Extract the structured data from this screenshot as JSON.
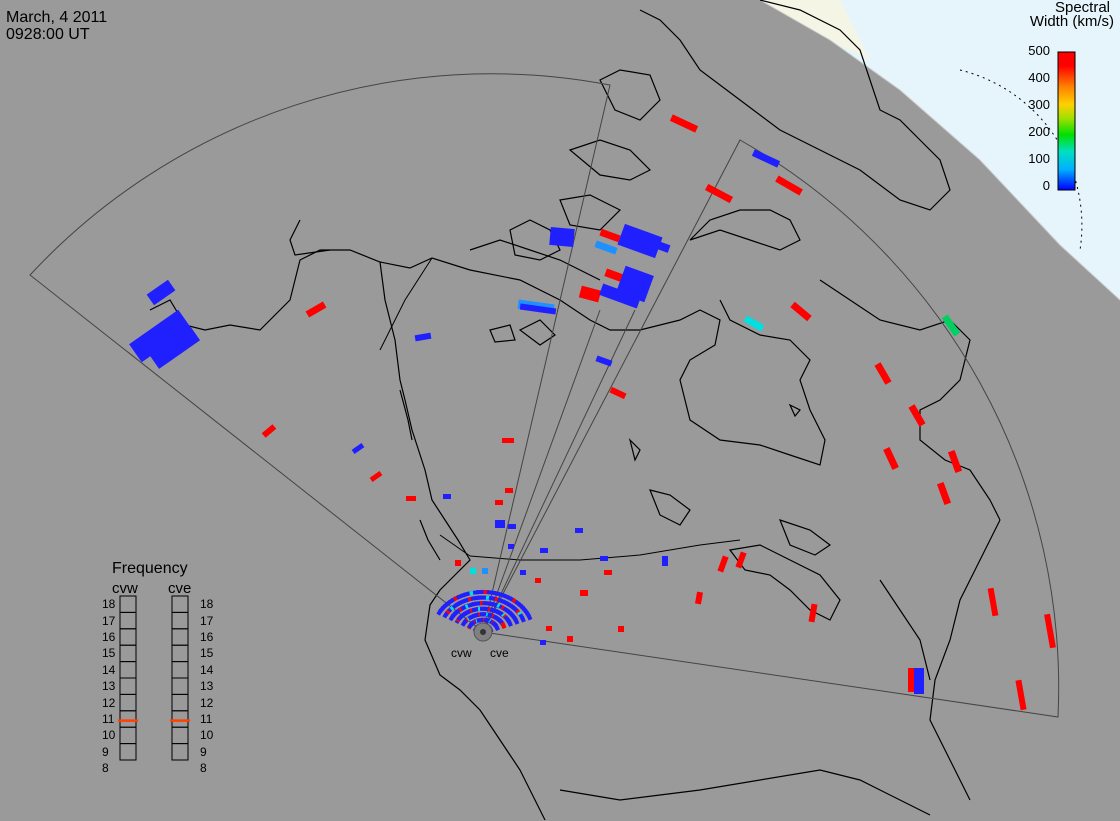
{
  "header": {
    "date": "March, 4 2011",
    "time": "0928:00 UT"
  },
  "colorbar": {
    "title_line1": "Spectral",
    "title_line2": "Width (km/s)",
    "ticks": [
      "500",
      "400",
      "300",
      "200",
      "100",
      "0"
    ],
    "colors": [
      "#0000ff",
      "#00b0ff",
      "#00e0c0",
      "#00e000",
      "#a0e000",
      "#ffd000",
      "#ff8000",
      "#ff0000"
    ]
  },
  "frequency_panel": {
    "title": "Frequency",
    "radars": [
      "cvw",
      "cve"
    ],
    "scale": [
      "18",
      "17",
      "16",
      "15",
      "14",
      "13",
      "12",
      "11",
      "10",
      "9",
      "8"
    ],
    "current_mhz": 10.9,
    "marker_color": "#ff4000"
  },
  "stations": [
    {
      "label": "cvw"
    },
    {
      "label": "cve"
    }
  ],
  "colors": {
    "background": "#9a9a9a",
    "daylight": "#e6f5fc",
    "daylight_edge": "#f5f5e6",
    "outline": "#000000",
    "fov": "#444444",
    "low_width": "#2020ff",
    "mid_width": "#1e90ff",
    "cyan_width": "#00e0e0",
    "green_width": "#00d060",
    "high_width": "#ff0000"
  }
}
